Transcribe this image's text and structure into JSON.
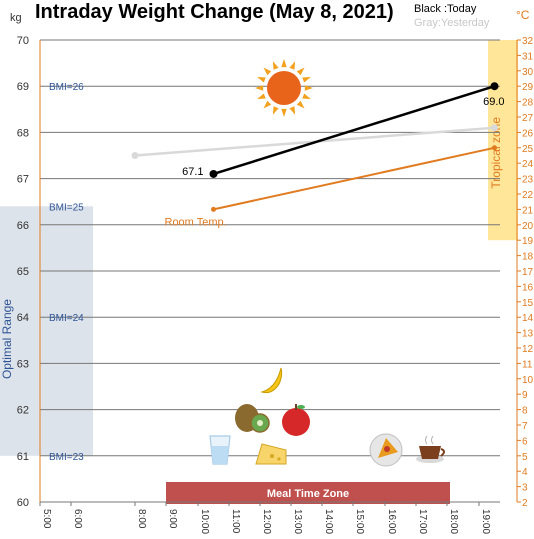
{
  "title": "Intraday Weight Change (May 8, 2021)",
  "legend": {
    "black": "Black :Today",
    "gray": "Gray:Yesterday"
  },
  "units": {
    "left": "kg",
    "right": "°C"
  },
  "colors": {
    "today": "#000000",
    "yesterday": "#d9d9d9",
    "room_temp": "#e07b20",
    "optimal_band": "#dde3ea",
    "tropical_band": "#ffe699",
    "meal_band": "#c0504d",
    "grid": "#777777"
  },
  "chart_data": {
    "type": "line",
    "x_ticks": [
      "5:00",
      "6:00",
      "8:00",
      "9:00",
      "10:00",
      "11:00",
      "12:00",
      "13:00",
      "14:00",
      "15:00",
      "16:00",
      "17:00",
      "18:00",
      "19:00"
    ],
    "y_left": {
      "min": 60,
      "max": 70,
      "ticks": [
        60,
        61,
        62,
        63,
        64,
        65,
        66,
        67,
        68,
        69,
        70
      ]
    },
    "y_right": {
      "min": 2,
      "max": 32,
      "ticks": [
        2,
        3,
        4,
        5,
        6,
        7,
        8,
        9,
        10,
        11,
        12,
        13,
        14,
        15,
        16,
        17,
        18,
        19,
        20,
        21,
        22,
        23,
        24,
        25,
        26,
        27,
        28,
        29,
        30,
        31,
        32
      ]
    },
    "series": [
      {
        "key": "today",
        "points": [
          {
            "x": "10:30",
            "y": 67.1
          },
          {
            "x": "19:30",
            "y": 69.0
          }
        ]
      },
      {
        "key": "yesterday",
        "points": [
          {
            "x": "8:00",
            "y": 67.5
          },
          {
            "x": "19:30",
            "y": 68.1
          }
        ]
      },
      {
        "key": "room_temp",
        "axis": "right",
        "points": [
          {
            "x": "10:30",
            "y": 21
          },
          {
            "x": "19:30",
            "y": 25
          }
        ]
      }
    ],
    "data_labels": [
      "67.1",
      "69.0"
    ],
    "bmi_lines": [
      {
        "label": "BMI=26",
        "y": 69.0
      },
      {
        "label": "BMI=25",
        "y": 66.4
      },
      {
        "label": "BMI=24",
        "y": 64.0
      },
      {
        "label": "BMI=23",
        "y": 61.0
      }
    ],
    "room_temp_label": "Room Temp.",
    "optimal_range": {
      "label": "Optimal Range",
      "y_from": 61.0,
      "y_to": 66.4
    },
    "tropical_zone": {
      "label": "Tropical zone",
      "temp_from": 19,
      "temp_to": 32
    },
    "meal_time_zone": {
      "label": "Meal Time Zone",
      "x_from": "9:00",
      "x_to": "18:00"
    },
    "icons": [
      "sun-icon",
      "banana-icon",
      "kiwi-icon",
      "apple-icon",
      "water-glass-icon",
      "cheese-icon",
      "pizza-icon",
      "coffee-cup-icon"
    ]
  }
}
